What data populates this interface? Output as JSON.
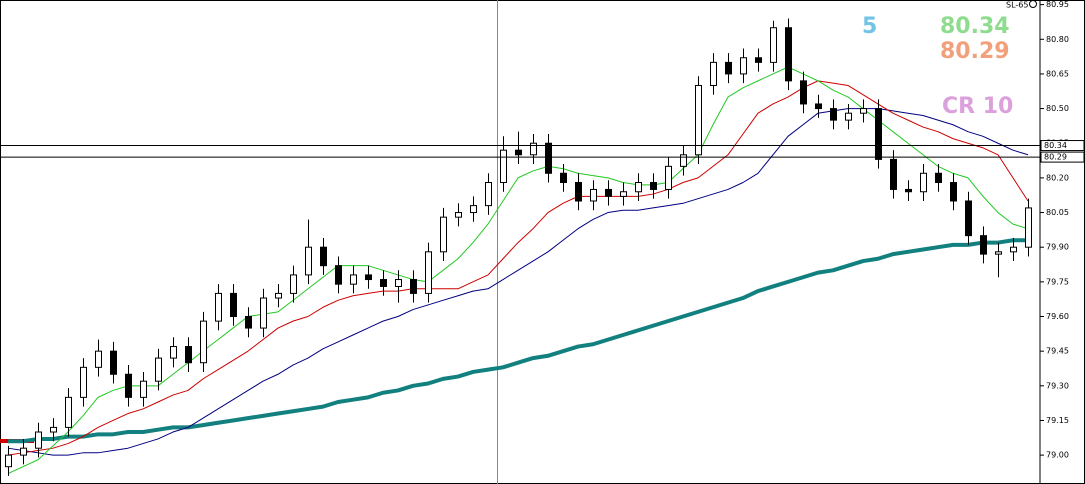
{
  "chart_data": {
    "type": "candlestick",
    "label": "SL-65",
    "ylim": [
      78.875,
      80.97
    ],
    "yticks": [
      80.95,
      {
        "value": 80.8,
        "label": "80.80"
      },
      80.65,
      {
        "value": 80.5,
        "label": "80.50"
      },
      80.35,
      {
        "value": 80.2,
        "label": "80.20"
      },
      80.05,
      {
        "value": 79.9,
        "label": "79.90"
      },
      79.75,
      {
        "value": 79.6,
        "label": "79.60"
      },
      79.45,
      {
        "value": 79.3,
        "label": "79.30"
      },
      79.15,
      {
        "value": 79,
        "label": "79.00"
      }
    ],
    "open": [
      78.95,
      79.0,
      79.03,
      79.1,
      79.12,
      79.25,
      79.38,
      79.45,
      79.35,
      79.25,
      79.32,
      79.42,
      79.47,
      79.4,
      79.58,
      79.7,
      79.6,
      79.55,
      79.68,
      79.7,
      79.78,
      79.9,
      79.82,
      79.74,
      79.78,
      79.76,
      79.73,
      79.76,
      79.7,
      79.88,
      80.03,
      80.05,
      80.08,
      80.18,
      80.32,
      80.3,
      80.35,
      80.22,
      80.18,
      80.1,
      80.15,
      80.12,
      80.14,
      80.18,
      80.15,
      80.25,
      80.3,
      80.6,
      80.7,
      80.65,
      80.72,
      80.7,
      80.85,
      80.62,
      80.52,
      80.5,
      80.45,
      80.48,
      80.5,
      80.28,
      80.15,
      80.14,
      80.22,
      80.18,
      80.1,
      79.95,
      79.87,
      79.88,
      79.9
    ],
    "high": [
      79.04,
      79.07,
      79.14,
      79.16,
      79.29,
      79.42,
      79.5,
      79.49,
      79.39,
      79.36,
      79.46,
      79.51,
      79.51,
      79.62,
      79.74,
      79.74,
      79.64,
      79.72,
      79.74,
      79.82,
      80.02,
      79.94,
      79.86,
      79.82,
      79.82,
      79.8,
      79.8,
      79.8,
      79.92,
      80.07,
      80.09,
      80.12,
      80.22,
      80.38,
      80.4,
      80.39,
      80.39,
      80.26,
      80.22,
      80.19,
      80.19,
      80.18,
      80.22,
      80.22,
      80.29,
      80.34,
      80.64,
      80.74,
      80.74,
      80.76,
      80.76,
      80.88,
      80.89,
      80.66,
      80.56,
      80.54,
      80.52,
      80.54,
      80.54,
      80.32,
      80.19,
      80.26,
      80.26,
      80.22,
      80.14,
      79.99,
      79.92,
      79.94,
      80.11
    ],
    "low": [
      78.91,
      78.96,
      78.99,
      79.06,
      79.08,
      79.21,
      79.34,
      79.31,
      79.21,
      79.21,
      79.28,
      79.38,
      79.36,
      79.36,
      79.54,
      79.56,
      79.51,
      79.51,
      79.64,
      79.66,
      79.74,
      79.78,
      79.7,
      79.7,
      79.72,
      79.69,
      79.66,
      79.66,
      79.66,
      79.84,
      79.99,
      80.01,
      80.04,
      80.14,
      80.26,
      80.26,
      80.18,
      80.14,
      80.06,
      80.06,
      80.08,
      80.08,
      80.1,
      80.11,
      80.11,
      80.21,
      80.26,
      80.56,
      80.61,
      80.61,
      80.66,
      80.66,
      80.58,
      80.48,
      80.46,
      80.41,
      80.41,
      80.44,
      80.24,
      80.11,
      80.1,
      80.1,
      80.14,
      80.06,
      79.91,
      79.83,
      79.77,
      79.84,
      79.86
    ],
    "close": [
      79.0,
      79.03,
      79.1,
      79.12,
      79.25,
      79.38,
      79.45,
      79.35,
      79.25,
      79.32,
      79.42,
      79.47,
      79.4,
      79.58,
      79.7,
      79.6,
      79.55,
      79.68,
      79.7,
      79.78,
      79.9,
      79.82,
      79.74,
      79.78,
      79.76,
      79.73,
      79.76,
      79.7,
      79.88,
      80.03,
      80.05,
      80.08,
      80.18,
      80.32,
      80.3,
      80.35,
      80.22,
      80.18,
      80.1,
      80.15,
      80.12,
      80.14,
      80.18,
      80.15,
      80.25,
      80.3,
      80.6,
      80.7,
      80.65,
      80.72,
      80.7,
      80.85,
      80.62,
      80.52,
      80.5,
      80.45,
      80.48,
      80.5,
      80.28,
      80.15,
      80.14,
      80.22,
      80.18,
      80.1,
      79.95,
      79.87,
      79.88,
      79.9,
      80.07
    ],
    "series": [
      {
        "color": "#138080",
        "width": 4,
        "values": [
          79.06,
          79.06,
          79.07,
          79.07,
          79.08,
          79.08,
          79.09,
          79.09,
          79.1,
          79.1,
          79.11,
          79.12,
          79.12,
          79.13,
          79.14,
          79.15,
          79.16,
          79.17,
          79.18,
          79.19,
          79.2,
          79.21,
          79.23,
          79.24,
          79.25,
          79.27,
          79.28,
          79.3,
          79.31,
          79.33,
          79.34,
          79.36,
          79.37,
          79.38,
          79.4,
          79.42,
          79.43,
          79.45,
          79.47,
          79.48,
          79.5,
          79.52,
          79.54,
          79.56,
          79.58,
          79.6,
          79.62,
          79.64,
          79.66,
          79.68,
          79.71,
          79.73,
          79.75,
          79.77,
          79.79,
          79.8,
          79.82,
          79.84,
          79.85,
          79.87,
          79.88,
          79.89,
          79.9,
          79.91,
          79.91,
          79.92,
          79.92,
          79.93,
          79.93
        ]
      },
      {
        "color": "#000080",
        "width": 1,
        "values": [
          79.03,
          79.02,
          79.01,
          79.0,
          79.0,
          79.01,
          79.01,
          79.02,
          79.03,
          79.05,
          79.07,
          79.1,
          79.12,
          79.16,
          79.2,
          79.24,
          79.28,
          79.32,
          79.35,
          79.39,
          79.42,
          79.46,
          79.49,
          79.52,
          79.55,
          79.58,
          79.6,
          79.63,
          79.65,
          79.67,
          79.69,
          79.71,
          79.72,
          79.76,
          79.8,
          79.84,
          79.88,
          79.93,
          79.98,
          80.02,
          80.05,
          80.06,
          80.06,
          80.07,
          80.08,
          80.09,
          80.11,
          80.13,
          80.15,
          80.18,
          80.22,
          80.3,
          80.38,
          80.43,
          80.48,
          80.49,
          80.5,
          80.5,
          80.5,
          80.49,
          80.48,
          80.47,
          80.45,
          80.43,
          80.4,
          80.38,
          80.35,
          80.32,
          80.3
        ]
      },
      {
        "color": "#cc0000",
        "width": 1,
        "values": [
          79.0,
          79.01,
          79.02,
          79.03,
          79.05,
          79.08,
          79.12,
          79.15,
          79.18,
          79.2,
          79.23,
          79.26,
          79.28,
          79.33,
          79.37,
          79.41,
          79.45,
          79.5,
          79.55,
          79.58,
          79.6,
          79.64,
          79.67,
          79.69,
          79.7,
          79.71,
          79.71,
          79.72,
          79.72,
          79.72,
          79.72,
          79.75,
          79.78,
          79.85,
          79.92,
          79.98,
          80.05,
          80.09,
          80.12,
          80.12,
          80.12,
          80.12,
          80.12,
          80.13,
          80.15,
          80.18,
          80.2,
          80.25,
          80.3,
          80.39,
          80.48,
          80.52,
          80.55,
          80.59,
          80.62,
          80.61,
          80.6,
          80.56,
          80.52,
          80.48,
          80.45,
          80.42,
          80.4,
          80.37,
          80.35,
          80.33,
          80.3,
          80.2,
          80.1
        ]
      },
      {
        "color": "#22c822",
        "width": 1,
        "values": [
          78.92,
          78.95,
          78.98,
          79.04,
          79.1,
          79.17,
          79.25,
          79.28,
          79.3,
          79.3,
          79.3,
          79.35,
          79.4,
          79.45,
          79.5,
          79.55,
          79.6,
          79.61,
          79.62,
          79.67,
          79.72,
          79.77,
          79.82,
          79.82,
          79.82,
          79.8,
          79.78,
          79.76,
          79.75,
          79.8,
          79.85,
          79.92,
          80.0,
          80.1,
          80.2,
          80.23,
          80.25,
          80.24,
          80.22,
          80.21,
          80.2,
          80.18,
          80.17,
          80.17,
          80.18,
          80.24,
          80.3,
          80.43,
          80.55,
          80.59,
          80.62,
          80.65,
          80.68,
          80.65,
          80.62,
          80.58,
          80.55,
          80.5,
          80.45,
          80.4,
          80.35,
          80.3,
          80.25,
          80.22,
          80.2,
          80.12,
          80.05,
          80.0,
          79.98
        ]
      }
    ],
    "hlines": [
      80.34,
      80.29
    ],
    "annotations": [
      {
        "text": "5",
        "color": "#72c4e6"
      },
      {
        "text": "80.34",
        "color": "#8edc8e"
      },
      {
        "text": "80.29",
        "color": "#f2a07c"
      },
      {
        "text": "CR 10",
        "color": "#dca0dc"
      }
    ]
  }
}
